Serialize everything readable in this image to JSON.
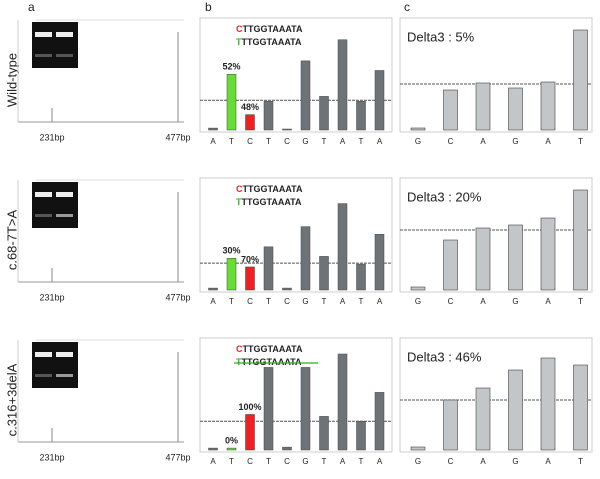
{
  "panel_labels": [
    "a",
    "b",
    "c"
  ],
  "rows": [
    {
      "label": "Wild-type",
      "size_labels": [
        "231bp",
        "477bp"
      ]
    },
    {
      "label": "c.68-7T>A",
      "size_labels": [
        "231bp",
        "477bp"
      ]
    },
    {
      "label": "c.316+3delA",
      "size_labels": [
        "231bp",
        "477bp"
      ]
    }
  ],
  "chart_data": [
    {
      "type": "bar",
      "sequences": [
        "CTTGGTAAATA",
        "TTTGGTAAATA"
      ],
      "annotations": [
        "52%",
        "48%"
      ],
      "categories": [
        "A",
        "T",
        "C",
        "T",
        "C",
        "G",
        "T",
        "A",
        "T",
        "A"
      ],
      "values": [
        2,
        58,
        16,
        30,
        1,
        72,
        35,
        94,
        30,
        62
      ],
      "colors": [
        "#6e7378",
        "#66dd33",
        "#ee2222",
        "#6e7378",
        "#6e7378",
        "#6e7378",
        "#6e7378",
        "#6e7378",
        "#6e7378",
        "#6e7378"
      ],
      "ylim": [
        0,
        100
      ],
      "reference_line": 31
    },
    {
      "type": "bar2",
      "title": "Delta3 : 5%",
      "categories": [
        "G",
        "C",
        "A",
        "G",
        "A",
        "T"
      ],
      "values": [
        2,
        40,
        47,
        42,
        48,
        100
      ],
      "color": "#c2c6c8",
      "ylim": [
        0,
        100
      ],
      "reference_line": 46
    },
    {
      "type": "bar",
      "sequences": [
        "CTTGGTAAATA",
        "TTTGGTAAATA"
      ],
      "annotations": [
        "30%",
        "70%"
      ],
      "categories": [
        "A",
        "T",
        "C",
        "T",
        "C",
        "G",
        "T",
        "A",
        "T",
        "A"
      ],
      "values": [
        2,
        33,
        24,
        45,
        2,
        66,
        35,
        90,
        27,
        58
      ],
      "colors": [
        "#6e7378",
        "#66dd33",
        "#ee2222",
        "#6e7378",
        "#6e7378",
        "#6e7378",
        "#6e7378",
        "#6e7378",
        "#6e7378",
        "#6e7378"
      ],
      "ylim": [
        0,
        100
      ],
      "reference_line": 28
    },
    {
      "type": "bar2",
      "title": "Delta3 : 20%",
      "categories": [
        "G",
        "C",
        "A",
        "G",
        "A",
        "T"
      ],
      "values": [
        3,
        50,
        62,
        65,
        72,
        100
      ],
      "color": "#c2c6c8",
      "ylim": [
        0,
        100
      ],
      "reference_line": 60
    },
    {
      "type": "bar",
      "sequences": [
        "CTTGGTAAATA",
        "TTTGGTAAATA"
      ],
      "annotations": [
        "0%",
        "100%"
      ],
      "categories": [
        "A",
        "T",
        "C",
        "T",
        "C",
        "G",
        "T",
        "A",
        "T",
        "A"
      ],
      "values": [
        2,
        2,
        37,
        86,
        3,
        86,
        35,
        100,
        30,
        60
      ],
      "colors": [
        "#6e7378",
        "#66dd33",
        "#ee2222",
        "#6e7378",
        "#6e7378",
        "#6e7378",
        "#6e7378",
        "#6e7378",
        "#6e7378",
        "#6e7378"
      ],
      "ylim": [
        0,
        100
      ],
      "reference_line": 30
    },
    {
      "type": "bar2",
      "title": "Delta3 : 46%",
      "categories": [
        "G",
        "C",
        "A",
        "G",
        "A",
        "T"
      ],
      "values": [
        3,
        50,
        62,
        80,
        92,
        85
      ],
      "color": "#c2c6c8",
      "ylim": [
        0,
        100
      ],
      "reference_line": 50
    }
  ]
}
